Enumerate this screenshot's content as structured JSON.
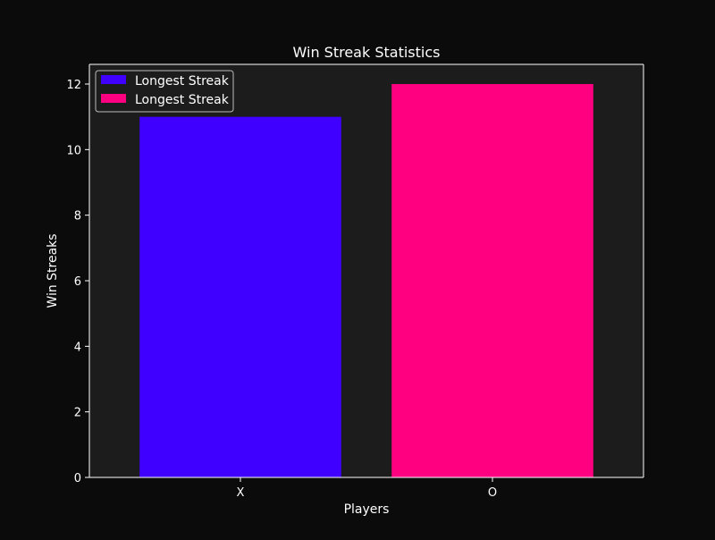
{
  "chart_data": {
    "type": "bar",
    "title": "Win Streak Statistics",
    "xlabel": "Players",
    "ylabel": "Win Streaks",
    "categories": [
      "X",
      "O"
    ],
    "series": [
      {
        "name": "Longest Streak",
        "values": [
          11,
          0
        ],
        "color": "#3f00ff"
      },
      {
        "name": "Longest Streak",
        "values": [
          0,
          12
        ],
        "color": "#ff0080"
      }
    ],
    "ylim": [
      0,
      12.6
    ],
    "yticks": [
      0,
      2,
      4,
      6,
      8,
      10,
      12
    ],
    "grid": false,
    "legend": "top-left"
  },
  "colors": {
    "figure_bg": "#0b0b0b",
    "axes_bg": "#1c1c1c",
    "text": "#ffffff"
  }
}
